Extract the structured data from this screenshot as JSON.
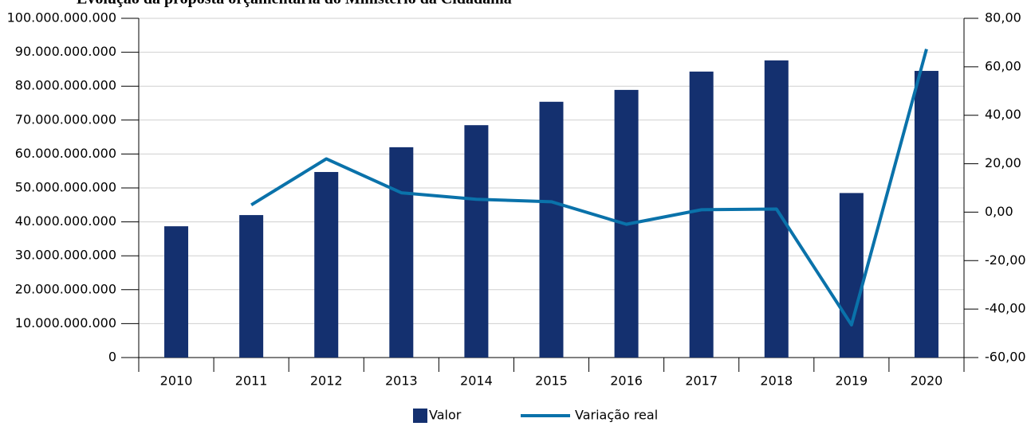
{
  "chart_data": {
    "type": "bar_line",
    "title": "Evolução da proposta orçamentária do Ministério da Cidadania",
    "categories": [
      "2010",
      "2011",
      "2012",
      "2013",
      "2014",
      "2015",
      "2016",
      "2017",
      "2018",
      "2019",
      "2020"
    ],
    "series": [
      {
        "name": "Valor",
        "type": "bar",
        "color": "#14306f",
        "values": [
          38700000000,
          42000000000,
          54700000000,
          62000000000,
          68500000000,
          75400000000,
          78900000000,
          84300000000,
          87600000000,
          48500000000,
          84500000000
        ]
      },
      {
        "name": "Variação real",
        "type": "line",
        "axis": "y2",
        "color": "#0a72aa",
        "values": [
          null,
          3.0,
          22.0,
          8.0,
          5.3,
          4.3,
          -5.0,
          1.0,
          1.3,
          -46.5,
          67.3
        ]
      }
    ],
    "ylim": [
      0,
      100000000000
    ],
    "yticks": [
      0,
      {
        "value": 10000000000,
        "label": "10.000.000.000"
      },
      {
        "value": 20000000000,
        "label": "20.000.000.000"
      },
      {
        "value": 30000000000,
        "label": "30.000.000.000"
      },
      {
        "value": 40000000000,
        "label": "40.000.000.000"
      },
      {
        "value": 50000000000,
        "label": "50.000.000.000"
      },
      {
        "value": 60000000000,
        "label": "60.000.000.000"
      },
      {
        "value": 70000000000,
        "label": "70.000.000.000"
      },
      {
        "value": 80000000000,
        "label": "80.000.000.000"
      },
      {
        "value": 90000000000,
        "label": "90.000.000.000"
      },
      {
        "value": 100000000000,
        "label": "100.000.000.000"
      }
    ],
    "y2lim": [
      -60,
      80
    ],
    "y2ticks": [
      {
        "value": -60,
        "label": "-60,00"
      },
      {
        "value": -40,
        "label": "-40,00"
      },
      {
        "value": -20,
        "label": "-20,00"
      },
      {
        "value": 0,
        "label": "0,00"
      },
      {
        "value": 20,
        "label": "20,00"
      },
      {
        "value": 40,
        "label": "40,00"
      },
      {
        "value": 60,
        "label": "60,00"
      },
      {
        "value": 80,
        "label": "80,00"
      }
    ],
    "grid": true,
    "legend": "bottom"
  }
}
